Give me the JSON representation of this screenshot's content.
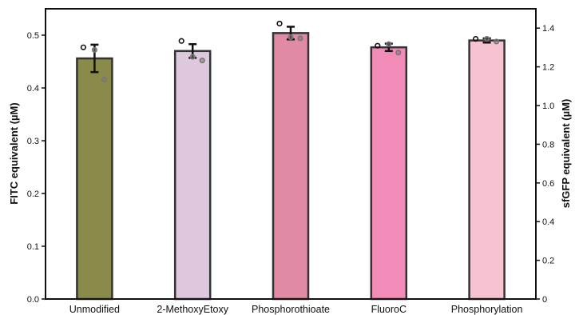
{
  "chart_data": {
    "type": "bar",
    "title": "",
    "categories": [
      "Unmodified",
      "2-MethoxyEtoxy",
      "Phosphorothioate",
      "FluoroC",
      "Phosphorylation"
    ],
    "values": [
      0.456,
      0.47,
      0.504,
      0.477,
      0.49
    ],
    "errors": [
      0.026,
      0.013,
      0.012,
      0.007,
      0.004
    ],
    "points": [
      [
        0.477,
        0.472,
        0.416
      ],
      [
        0.489,
        0.459,
        0.452
      ],
      [
        0.522,
        0.496,
        0.494
      ],
      [
        0.48,
        0.483,
        0.467
      ],
      [
        0.493,
        0.493,
        0.488
      ]
    ],
    "bar_colors": [
      "#8a8b4a",
      "#ddc8de",
      "#e08ba3",
      "#f28bb8",
      "#f8c3d0"
    ],
    "ylabel": "FITC equivalent (µM)",
    "ylim": [
      0,
      0.55
    ],
    "yticks": [
      "0.0",
      "0.1",
      "0.2",
      "0.3",
      "0.4",
      "0.5"
    ],
    "y2label": "sfGFP equivalent (µM)",
    "y2lim": [
      0,
      1.5
    ],
    "y2ticks": [
      "0",
      "0.2",
      "0.4",
      "0.6",
      "0.8",
      "1.0",
      "1.2",
      "1.4"
    ],
    "grid": false,
    "legend": "none"
  }
}
